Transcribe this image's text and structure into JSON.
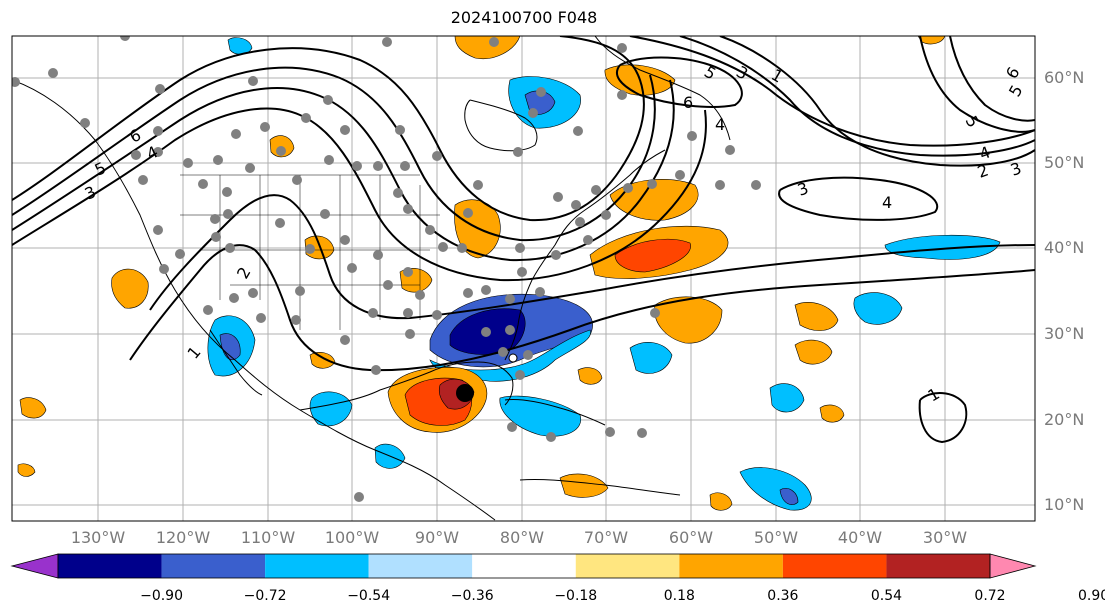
{
  "title": "2024100700 F048",
  "lat_labels": [
    "60°N",
    "50°N",
    "40°N",
    "30°N",
    "20°N",
    "10°N"
  ],
  "lon_labels": [
    "130°W",
    "120°W",
    "110°W",
    "100°W",
    "90°W",
    "80°W",
    "70°W",
    "60°W",
    "50°W",
    "40°W",
    "30°W"
  ],
  "contour_labels": [
    "6",
    "5",
    "4",
    "3",
    "2",
    "1",
    "5",
    "3",
    "1",
    "6",
    "4",
    "4",
    "3",
    "2",
    "5",
    "6",
    "5",
    "4",
    "3",
    "1"
  ],
  "colorbar": {
    "ticks": [
      "−0.90",
      "−0.72",
      "−0.54",
      "−0.36",
      "−0.18",
      "0.18",
      "0.36",
      "0.54",
      "0.72",
      "0.90"
    ],
    "colors": [
      "#9932cc",
      "#00008b",
      "#3a5fcd",
      "#00bfff",
      "#b0e0ff",
      "#ffffff",
      "#ffe680",
      "#ffa500",
      "#ff4500",
      "#b22222",
      "#ff88b0"
    ]
  },
  "colors": {
    "grid": "#b0b0b0",
    "dot": "#808080",
    "contour": "#000000",
    "hurricane_center": "#000000"
  }
}
